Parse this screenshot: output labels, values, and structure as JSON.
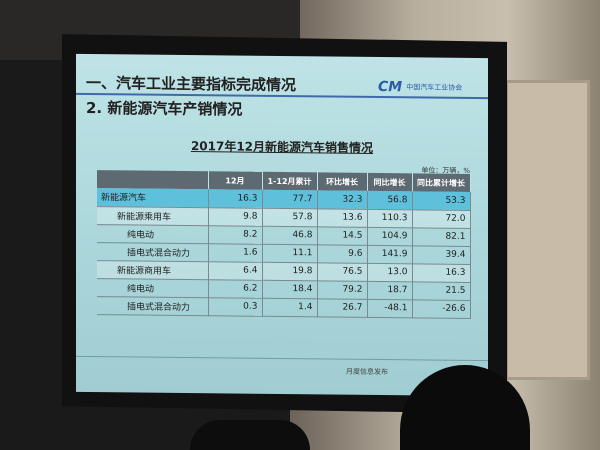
{
  "slide": {
    "heading1": "一、汽车工业主要指标完成情况",
    "heading2": "2. 新能源汽车产销情况",
    "logo_mark": "CM",
    "logo_text": "中国汽车工业协会",
    "table_title": "2017年12月新能源汽车销售情况",
    "unit": "单位：万辆，%",
    "columns": [
      "",
      "12月",
      "1-12月累计",
      "环比增长",
      "同比增长",
      "同比累计增长"
    ],
    "rows": [
      {
        "label": "新能源汽车",
        "values": [
          "16.3",
          "77.7",
          "32.3",
          "56.8",
          "53.3"
        ]
      },
      {
        "label": "新能源乘用车",
        "values": [
          "9.8",
          "57.8",
          "13.6",
          "110.3",
          "72.0"
        ]
      },
      {
        "label": "纯电动",
        "values": [
          "8.2",
          "46.8",
          "14.5",
          "104.9",
          "82.1"
        ]
      },
      {
        "label": "插电式混合动力",
        "values": [
          "1.6",
          "11.1",
          "9.6",
          "141.9",
          "39.4"
        ]
      },
      {
        "label": "新能源商用车",
        "values": [
          "6.4",
          "19.8",
          "76.5",
          "13.0",
          "16.3"
        ]
      },
      {
        "label": "纯电动",
        "values": [
          "6.2",
          "18.4",
          "79.2",
          "18.7",
          "21.5"
        ]
      },
      {
        "label": "插电式混合动力",
        "values": [
          "0.3",
          "1.4",
          "26.7",
          "-48.1",
          "-26.6"
        ]
      }
    ],
    "footer": "月度信息发布",
    "highlight_color": "#5fc0dc"
  }
}
